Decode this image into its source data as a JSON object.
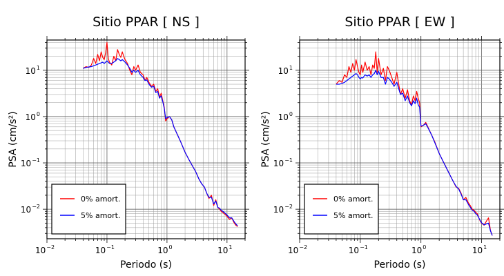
{
  "chart_data": [
    {
      "type": "line",
      "title": "Sitio PPAR [ NS ]",
      "xlabel": "Periodo (s)",
      "ylabel": "PSA (cm/s²)",
      "xscale": "log",
      "yscale": "log",
      "xlim": [
        0.01,
        20
      ],
      "ylim": [
        0.0023,
        45
      ],
      "grid": true,
      "legend_position": "bottom-left",
      "series": [
        {
          "name": "0% amort.",
          "color": "#ff0000",
          "x": [
            0.04,
            0.045,
            0.05,
            0.055,
            0.06,
            0.065,
            0.07,
            0.075,
            0.08,
            0.085,
            0.09,
            0.095,
            0.1,
            0.105,
            0.11,
            0.12,
            0.13,
            0.14,
            0.15,
            0.16,
            0.17,
            0.18,
            0.19,
            0.2,
            0.22,
            0.24,
            0.26,
            0.28,
            0.3,
            0.33,
            0.36,
            0.4,
            0.43,
            0.46,
            0.5,
            0.55,
            0.6,
            0.65,
            0.7,
            0.75,
            0.8,
            0.85,
            0.9,
            0.95,
            1.0,
            1.1,
            1.2,
            1.3,
            1.5,
            1.7,
            2.0,
            2.3,
            2.6,
            3.0,
            3.4,
            3.8,
            4.2,
            4.6,
            5.0,
            5.5,
            6.0,
            6.5,
            7.0,
            7.5,
            8.0,
            8.5,
            9.0,
            9.5,
            10,
            11,
            12,
            13,
            14,
            15
          ],
          "values": [
            11,
            12,
            11.5,
            13,
            18,
            14,
            22,
            16,
            25,
            19,
            17,
            24,
            40,
            18,
            15,
            13,
            20,
            16,
            28,
            22,
            19,
            25,
            20,
            17,
            14,
            10,
            8,
            12,
            10,
            13,
            9,
            8,
            6,
            7,
            5.5,
            4.5,
            5,
            3.5,
            4,
            2.6,
            3.2,
            2.2,
            1.6,
            0.8,
            0.9,
            1.0,
            0.85,
            0.6,
            0.4,
            0.28,
            0.17,
            0.12,
            0.09,
            0.065,
            0.045,
            0.035,
            0.03,
            0.022,
            0.017,
            0.02,
            0.012,
            0.016,
            0.011,
            0.01,
            0.009,
            0.0085,
            0.008,
            0.0075,
            0.007,
            0.006,
            0.0065,
            0.0052,
            0.0045,
            0.0042
          ]
        },
        {
          "name": "5% amort.",
          "color": "#0000ff",
          "x": [
            0.04,
            0.045,
            0.05,
            0.055,
            0.06,
            0.065,
            0.07,
            0.075,
            0.08,
            0.085,
            0.09,
            0.095,
            0.1,
            0.105,
            0.11,
            0.12,
            0.13,
            0.14,
            0.15,
            0.16,
            0.17,
            0.18,
            0.19,
            0.2,
            0.22,
            0.24,
            0.26,
            0.28,
            0.3,
            0.33,
            0.36,
            0.4,
            0.43,
            0.46,
            0.5,
            0.55,
            0.6,
            0.65,
            0.7,
            0.75,
            0.8,
            0.85,
            0.9,
            0.95,
            1.0,
            1.1,
            1.2,
            1.3,
            1.5,
            1.7,
            2.0,
            2.3,
            2.6,
            3.0,
            3.4,
            3.8,
            4.2,
            4.6,
            5.0,
            5.5,
            6.0,
            6.5,
            7.0,
            7.5,
            8.0,
            8.5,
            9.0,
            9.5,
            10,
            11,
            12,
            13,
            14,
            15
          ],
          "values": [
            11,
            11.5,
            11.8,
            12,
            12.5,
            13,
            13.5,
            14,
            14.5,
            15,
            14,
            15,
            16,
            15,
            14,
            14,
            15,
            16,
            18,
            17,
            16,
            17,
            16,
            15,
            13,
            11,
            9,
            10,
            9,
            10,
            8,
            7,
            6,
            6.2,
            5,
            4.3,
            4.5,
            3.3,
            3.5,
            2.5,
            2.8,
            2.1,
            1.5,
            0.9,
            0.95,
            1.0,
            0.85,
            0.6,
            0.4,
            0.28,
            0.17,
            0.12,
            0.09,
            0.065,
            0.045,
            0.035,
            0.03,
            0.022,
            0.018,
            0.018,
            0.013,
            0.015,
            0.011,
            0.0105,
            0.0095,
            0.009,
            0.0085,
            0.008,
            0.0075,
            0.0065,
            0.0065,
            0.0055,
            0.0048,
            0.0044
          ]
        }
      ]
    },
    {
      "type": "line",
      "title": "Sitio PPAR [ EW ]",
      "xlabel": "Periodo (s)",
      "ylabel": "PSA (cm/s²)",
      "xscale": "log",
      "yscale": "log",
      "xlim": [
        0.01,
        20
      ],
      "ylim": [
        0.0023,
        45
      ],
      "grid": true,
      "legend_position": "bottom-left",
      "series": [
        {
          "name": "0% amort.",
          "color": "#ff0000",
          "x": [
            0.04,
            0.045,
            0.05,
            0.055,
            0.06,
            0.065,
            0.07,
            0.075,
            0.08,
            0.085,
            0.09,
            0.095,
            0.1,
            0.105,
            0.11,
            0.12,
            0.13,
            0.14,
            0.15,
            0.16,
            0.17,
            0.18,
            0.19,
            0.2,
            0.22,
            0.24,
            0.26,
            0.28,
            0.3,
            0.33,
            0.36,
            0.4,
            0.43,
            0.46,
            0.5,
            0.55,
            0.6,
            0.65,
            0.7,
            0.75,
            0.8,
            0.85,
            0.9,
            0.95,
            1.0,
            1.1,
            1.2,
            1.3,
            1.5,
            1.7,
            2.0,
            2.3,
            2.6,
            3.0,
            3.4,
            3.8,
            4.2,
            4.6,
            5.0,
            5.5,
            6.0,
            6.5,
            7.0,
            7.5,
            8.0,
            8.5,
            9.0,
            9.5,
            10,
            11,
            12,
            13,
            14,
            15
          ],
          "values": [
            5,
            6,
            5.5,
            8,
            7,
            12,
            9,
            14,
            10,
            17,
            12,
            9,
            8,
            13,
            9,
            15,
            10,
            12,
            8,
            13,
            11,
            25,
            9,
            18,
            8,
            11,
            6,
            12,
            10,
            7,
            5,
            9,
            5,
            3,
            4,
            2.5,
            3.8,
            2.2,
            1.8,
            2.8,
            2.2,
            3.5,
            2.5,
            2.0,
            0.6,
            0.65,
            0.75,
            0.6,
            0.4,
            0.28,
            0.16,
            0.11,
            0.08,
            0.055,
            0.04,
            0.03,
            0.028,
            0.022,
            0.016,
            0.018,
            0.014,
            0.012,
            0.01,
            0.0095,
            0.0085,
            0.008,
            0.0065,
            0.0055,
            0.005,
            0.0045,
            0.0055,
            0.0065,
            0.0035,
            0.0027
          ]
        },
        {
          "name": "5% amort.",
          "color": "#0000ff",
          "x": [
            0.04,
            0.045,
            0.05,
            0.055,
            0.06,
            0.065,
            0.07,
            0.075,
            0.08,
            0.085,
            0.09,
            0.095,
            0.1,
            0.105,
            0.11,
            0.12,
            0.13,
            0.14,
            0.15,
            0.16,
            0.17,
            0.18,
            0.19,
            0.2,
            0.22,
            0.24,
            0.26,
            0.28,
            0.3,
            0.33,
            0.36,
            0.4,
            0.43,
            0.46,
            0.5,
            0.55,
            0.6,
            0.65,
            0.7,
            0.75,
            0.8,
            0.85,
            0.9,
            0.95,
            1.0,
            1.1,
            1.2,
            1.3,
            1.5,
            1.7,
            2.0,
            2.3,
            2.6,
            3.0,
            3.4,
            3.8,
            4.2,
            4.6,
            5.0,
            5.5,
            6.0,
            6.5,
            7.0,
            7.5,
            8.0,
            8.5,
            9.0,
            9.5,
            10,
            11,
            12,
            13,
            14,
            15
          ],
          "values": [
            5,
            5,
            5.2,
            5.5,
            6,
            6.5,
            7,
            7.5,
            8,
            8.5,
            8,
            7,
            6.5,
            7,
            6.8,
            8,
            7.5,
            8,
            7,
            8,
            8.5,
            10,
            8,
            9.5,
            7,
            7,
            5,
            7,
            6.5,
            5.5,
            4.5,
            5.5,
            4,
            3,
            3.2,
            2.2,
            2.8,
            2.0,
            1.7,
            2.2,
            1.9,
            2.5,
            1.8,
            1.6,
            0.62,
            0.65,
            0.7,
            0.58,
            0.4,
            0.27,
            0.16,
            0.11,
            0.08,
            0.055,
            0.04,
            0.031,
            0.027,
            0.021,
            0.016,
            0.016,
            0.013,
            0.011,
            0.0095,
            0.009,
            0.008,
            0.0075,
            0.0065,
            0.0057,
            0.0051,
            0.0046,
            0.0048,
            0.005,
            0.0034,
            0.0027
          ]
        }
      ]
    }
  ]
}
